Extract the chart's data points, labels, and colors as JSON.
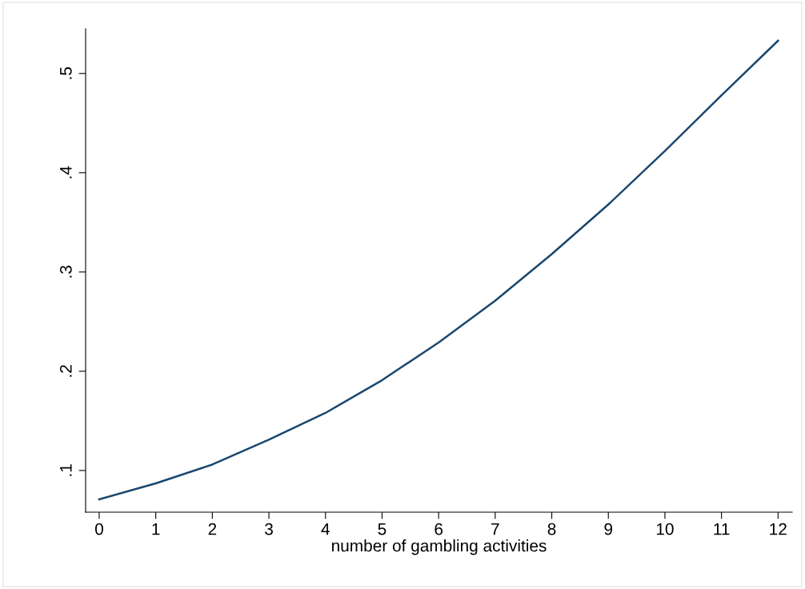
{
  "chart_data": {
    "type": "line",
    "xlabel": "number of gambling activities",
    "x": [
      0,
      1,
      2,
      3,
      4,
      5,
      6,
      7,
      8,
      9,
      10,
      11,
      12
    ],
    "series": [
      {
        "color": "#1a476f",
        "values": [
          0.071,
          0.087,
          0.106,
          0.131,
          0.158,
          0.191,
          0.229,
          0.271,
          0.318,
          0.368,
          0.422,
          0.478,
          0.533
        ]
      }
    ],
    "xlim": [
      -0.24,
      12.25
    ],
    "xticks": [
      0,
      1,
      2,
      3,
      4,
      5,
      6,
      7,
      8,
      9,
      10,
      11,
      12
    ],
    "ylim": [
      0.058,
      0.545
    ],
    "yticks": [
      {
        "value": 0.1,
        "label": ".1"
      },
      {
        "value": 0.2,
        "label": ".2"
      },
      {
        "value": 0.3,
        "label": ".3"
      },
      {
        "value": 0.4,
        "label": ".4"
      },
      {
        "value": 0.5,
        "label": ".5"
      }
    ],
    "grid": false,
    "marker": "none",
    "line_style": "solid"
  }
}
